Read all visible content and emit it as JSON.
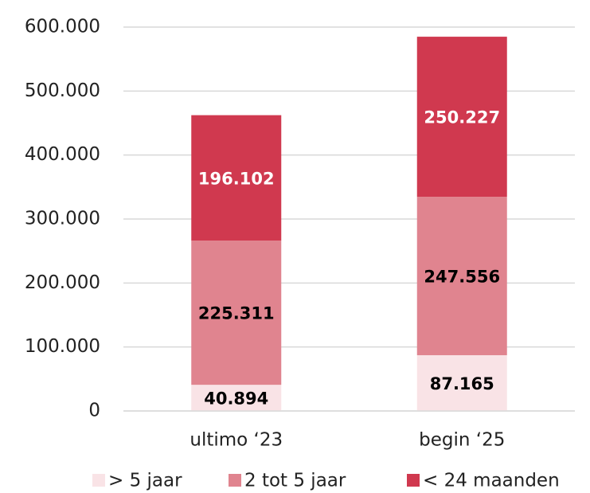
{
  "chart_data": {
    "type": "stacked_bar",
    "categories": [
      "ultimo ‘23",
      "begin ‘25"
    ],
    "series": [
      {
        "name": "> 5 jaar",
        "color": "#f9e3e6",
        "label_color": "#000000",
        "values": [
          40894,
          87165
        ],
        "value_labels": [
          "40.894",
          "87.165"
        ]
      },
      {
        "name": "2 tot 5 jaar",
        "color": "#e0848f",
        "label_color": "#000000",
        "values": [
          225311,
          247556
        ],
        "value_labels": [
          "225.311",
          "247.556"
        ]
      },
      {
        "name": "< 24 maanden",
        "color": "#d0394f",
        "label_color": "#ffffff",
        "values": [
          196102,
          250227
        ],
        "value_labels": [
          "196.102",
          "250.227"
        ]
      }
    ],
    "ylim": [
      0,
      600000
    ],
    "yticks": [
      0,
      {
        "value": 100000,
        "label": "100.000"
      },
      {
        "value": 200000,
        "label": "200.000"
      },
      {
        "value": 300000,
        "label": "300.000"
      },
      {
        "value": 400000,
        "label": "400.000"
      },
      {
        "value": 500000,
        "label": "500.000"
      },
      {
        "value": 600000,
        "label": "600.000"
      }
    ],
    "grid": true,
    "legend": "bottom"
  }
}
